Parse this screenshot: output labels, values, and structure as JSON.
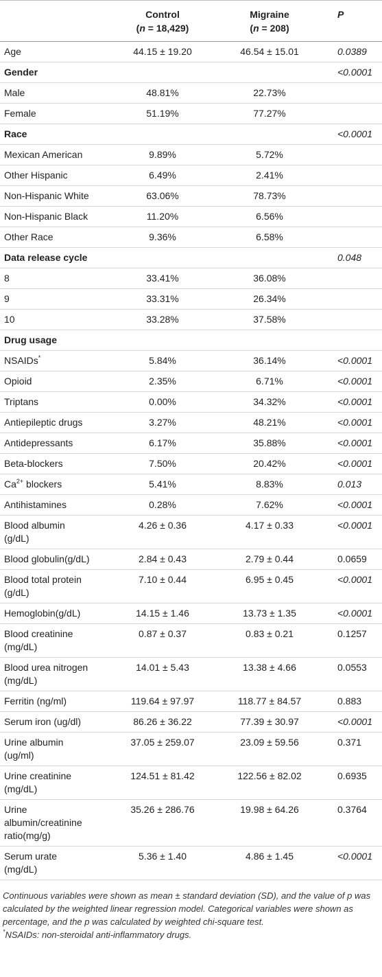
{
  "table": {
    "header": [
      {
        "title": "",
        "parts": []
      },
      {
        "title": "Control",
        "parts": [
          {
            "t": "("
          },
          {
            "i": "n"
          },
          {
            "t": " = 18,429)"
          }
        ]
      },
      {
        "title": "Migraine",
        "parts": [
          {
            "t": "("
          },
          {
            "i": "n"
          },
          {
            "t": " = 208)"
          }
        ]
      },
      {
        "title": "P",
        "parts": []
      }
    ],
    "rows": [
      {
        "label": "Age",
        "cells": [
          "44.15 ± 19.20",
          "46.54 ± 15.01",
          "0.0389"
        ],
        "italic_p": true
      },
      {
        "label": "Gender",
        "heading": true,
        "cells": [
          "",
          "",
          "<0.0001"
        ],
        "italic_p": true
      },
      {
        "label": "Male",
        "cells": [
          "48.81%",
          "22.73%",
          ""
        ]
      },
      {
        "label": "Female",
        "cells": [
          "51.19%",
          "77.27%",
          ""
        ]
      },
      {
        "label": "Race",
        "heading": true,
        "cells": [
          "",
          "",
          "<0.0001"
        ],
        "italic_p": true
      },
      {
        "label": "Mexican American",
        "cells": [
          "9.89%",
          "5.72%",
          ""
        ]
      },
      {
        "label": "Other Hispanic",
        "cells": [
          "6.49%",
          "2.41%",
          ""
        ]
      },
      {
        "label": "Non-Hispanic White",
        "cells": [
          "63.06%",
          "78.73%",
          ""
        ]
      },
      {
        "label": "Non-Hispanic Black",
        "cells": [
          "11.20%",
          "6.56%",
          ""
        ]
      },
      {
        "label": "Other Race",
        "cells": [
          "9.36%",
          "6.58%",
          ""
        ]
      },
      {
        "label": "Data release cycle",
        "heading": true,
        "cells": [
          "",
          "",
          "0.048"
        ],
        "italic_p": true
      },
      {
        "label": "8",
        "cells": [
          "33.41%",
          "36.08%",
          ""
        ]
      },
      {
        "label": "9",
        "cells": [
          "33.31%",
          "26.34%",
          ""
        ]
      },
      {
        "label": "10",
        "cells": [
          "33.28%",
          "37.58%",
          ""
        ]
      },
      {
        "label": "Drug usage",
        "heading": true,
        "cells": [
          "",
          "",
          ""
        ]
      },
      {
        "label": [
          {
            "t": "NSAIDs"
          },
          {
            "sup": "*"
          }
        ],
        "cells": [
          "5.84%",
          "36.14%",
          "<0.0001"
        ],
        "italic_p": true
      },
      {
        "label": "Opioid",
        "cells": [
          "2.35%",
          "6.71%",
          "<0.0001"
        ],
        "italic_p": true
      },
      {
        "label": "Triptans",
        "cells": [
          "0.00%",
          "34.32%",
          "<0.0001"
        ],
        "italic_p": true
      },
      {
        "label": "Antiepileptic drugs",
        "cells": [
          "3.27%",
          "48.21%",
          "<0.0001"
        ],
        "italic_p": true
      },
      {
        "label": "Antidepressants",
        "cells": [
          "6.17%",
          "35.88%",
          "<0.0001"
        ],
        "italic_p": true
      },
      {
        "label": "Beta-blockers",
        "cells": [
          "7.50%",
          "20.42%",
          "<0.0001"
        ],
        "italic_p": true
      },
      {
        "label": [
          {
            "t": "Ca"
          },
          {
            "sup": "2+"
          },
          {
            "t": " blockers"
          }
        ],
        "cells": [
          "5.41%",
          "8.83%",
          "0.013"
        ],
        "italic_p": true
      },
      {
        "label": "Antihistamines",
        "cells": [
          "0.28%",
          "7.62%",
          "<0.0001"
        ],
        "italic_p": true
      },
      {
        "label": "Blood albumin (g/dL)",
        "cells": [
          "4.26 ± 0.36",
          "4.17 ± 0.33",
          "<0.0001"
        ],
        "italic_p": true
      },
      {
        "label": "Blood globulin(g/dL)",
        "cells": [
          "2.84 ± 0.43",
          "2.79 ± 0.44",
          "0.0659"
        ]
      },
      {
        "label": "Blood total protein (g/dL)",
        "cells": [
          "7.10 ± 0.44",
          "6.95 ± 0.45",
          "<0.0001"
        ],
        "italic_p": true
      },
      {
        "label": "Hemoglobin(g/dL)",
        "cells": [
          "14.15 ± 1.46",
          "13.73 ± 1.35",
          "<0.0001"
        ],
        "italic_p": true
      },
      {
        "label": "Blood creatinine (mg/dL)",
        "cells": [
          "0.87 ± 0.37",
          "0.83 ± 0.21",
          "0.1257"
        ]
      },
      {
        "label": "Blood urea nitrogen (mg/dL)",
        "cells": [
          "14.01 ± 5.43",
          "13.38 ± 4.66",
          "0.0553"
        ]
      },
      {
        "label": "Ferritin (ng/ml)",
        "cells": [
          "119.64 ± 97.97",
          "118.77 ± 84.57",
          "0.883"
        ]
      },
      {
        "label": "Serum iron (ug/dl)",
        "cells": [
          "86.26 ± 36.22",
          "77.39 ± 30.97",
          "<0.0001"
        ],
        "italic_p": true
      },
      {
        "label": "Urine albumin (ug/ml)",
        "cells": [
          "37.05 ± 259.07",
          "23.09 ± 59.56",
          "0.371"
        ]
      },
      {
        "label": "Urine creatinine (mg/dL)",
        "cells": [
          "124.51 ± 81.42",
          "122.56 ± 82.02",
          "0.6935"
        ]
      },
      {
        "label": "Urine albumin/creatinine ratio(mg/g)",
        "cells": [
          "35.26 ± 286.76",
          "19.98 ± 64.26",
          "0.3764"
        ]
      },
      {
        "label": "Serum urate (mg/dL)",
        "cells": [
          "5.36 ± 1.40",
          "4.86 ± 1.45",
          "<0.0001"
        ],
        "italic_p": true
      }
    ]
  },
  "footer": {
    "note": "Continuous variables were shown as mean ± standard deviation (SD), and the value of p was calculated by the weighted linear regression model. Categorical variables were shown as percentage, and the p was calculated by weighted chi-square test.",
    "footnote": [
      {
        "sup": "*"
      },
      {
        "t": "NSAIDs: non-steroidal anti-inflammatory drugs."
      }
    ]
  }
}
